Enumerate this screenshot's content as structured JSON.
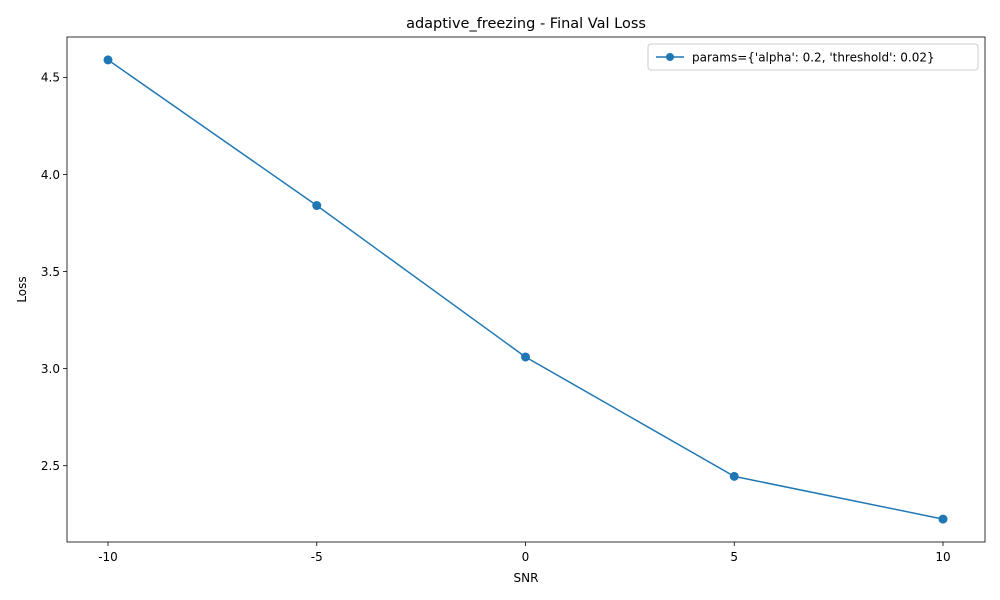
{
  "chart_data": {
    "type": "line",
    "title": "adaptive_freezing - Final Val Loss",
    "xlabel": "SNR",
    "ylabel": "Loss",
    "categories": [
      "-10",
      "-5",
      "0",
      "5",
      "10"
    ],
    "series": [
      {
        "name": "params={'alpha': 0.2, 'threshold': 0.02}",
        "values": [
          4.59,
          3.84,
          3.06,
          2.445,
          2.225
        ],
        "color": "#1f77b4",
        "marker": "circle"
      }
    ],
    "y_ticks": [
      2.5,
      3.0,
      3.5,
      4.0,
      4.5
    ],
    "y_tick_labels": [
      "2.5",
      "3.0",
      "3.5",
      "4.0",
      "4.5"
    ],
    "ylim": [
      2.107,
      4.708
    ],
    "grid": false,
    "legend_position": "upper right"
  }
}
